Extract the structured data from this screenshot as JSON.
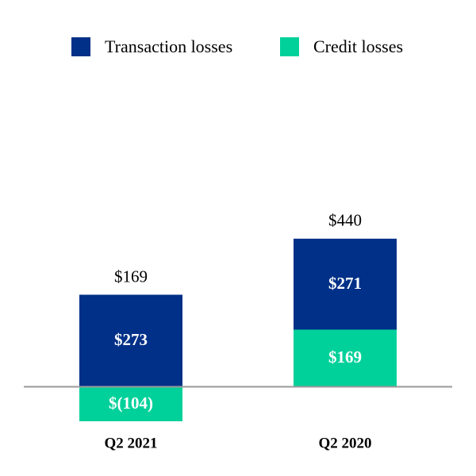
{
  "chart_data": {
    "type": "bar",
    "stacked": true,
    "categories": [
      "Q2 2021",
      "Q2 2020"
    ],
    "series": [
      {
        "name": "Credit losses",
        "color": "#00D19A",
        "values": [
          -104,
          169
        ],
        "labels": [
          "$(104)",
          "$169"
        ]
      },
      {
        "name": "Transaction losses",
        "color": "#003087",
        "values": [
          273,
          271
        ],
        "labels": [
          "$273",
          "$271"
        ]
      }
    ],
    "totals": [
      169,
      440
    ],
    "total_labels": [
      "$169",
      "$440"
    ],
    "legend": [
      "Transaction losses",
      "Credit losses"
    ],
    "legend_placement": "top",
    "title": "",
    "xlabel": "",
    "ylabel": "",
    "ylim": [
      -104,
      440
    ],
    "grid": false
  }
}
